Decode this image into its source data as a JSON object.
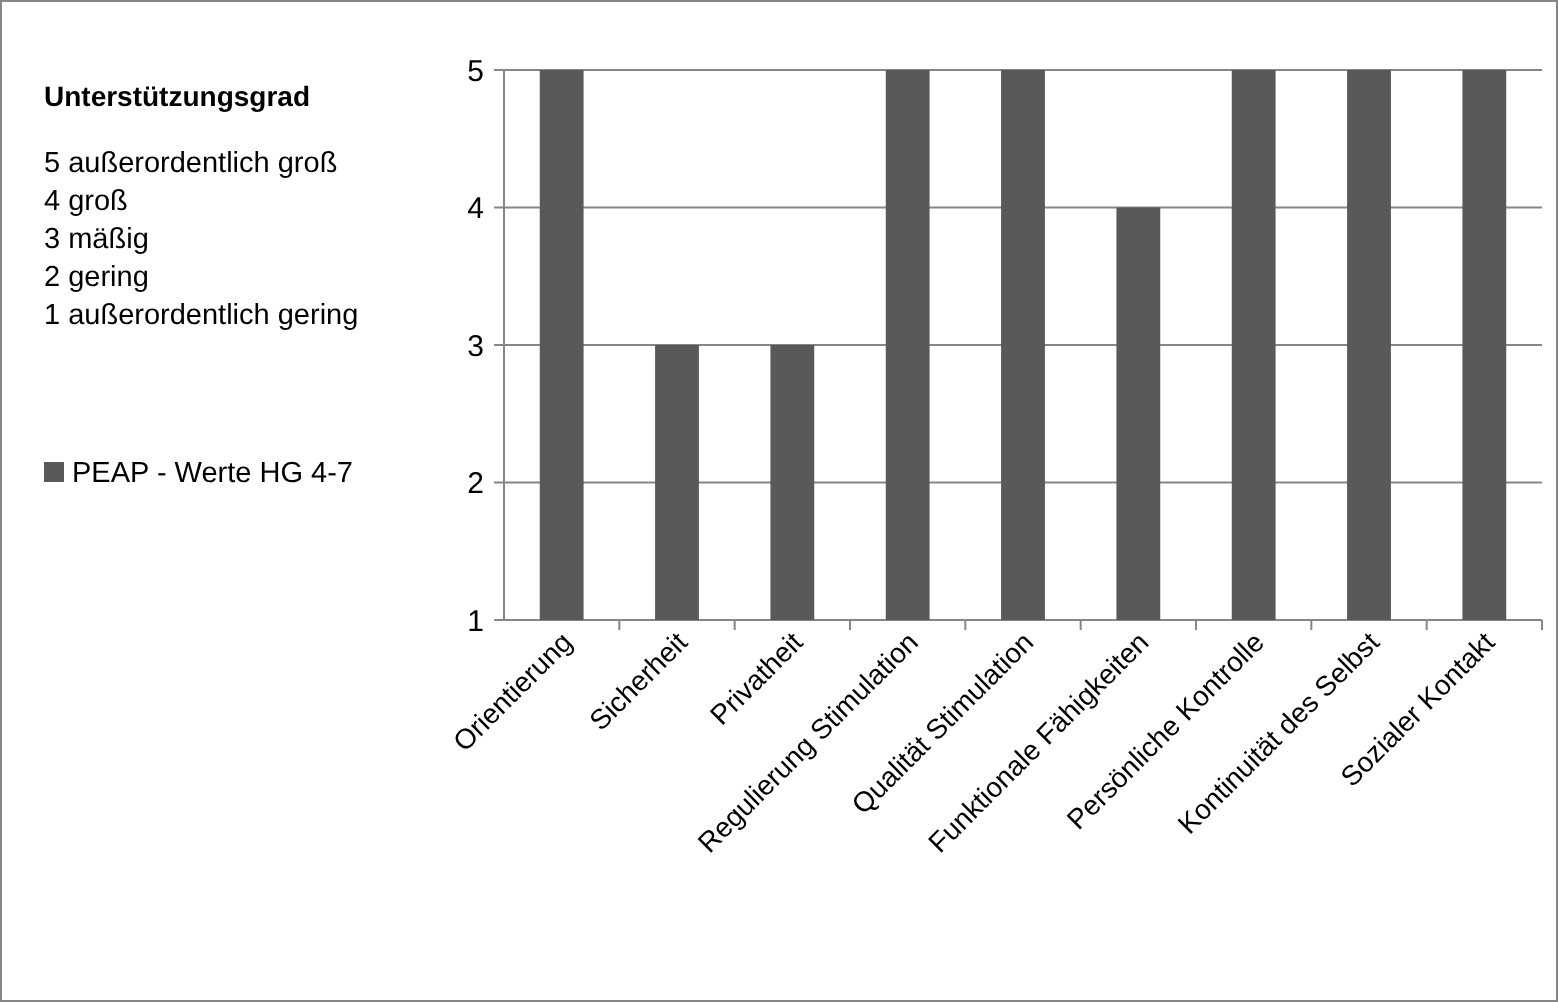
{
  "chart_data": {
    "type": "bar",
    "categories": [
      "Orientierung",
      "Sicherheit",
      "Privatheit",
      "Regulierung Stimulation",
      "Qualität Stimulation",
      "Funktionale Fähigkeiten",
      "Persönliche Kontrolle",
      "Kontinuität des Selbst",
      "Sozialer Kontakt"
    ],
    "series": [
      {
        "name": "PEAP - Werte HG 4-7",
        "color": "#595959",
        "values": [
          5,
          3,
          3,
          5,
          5,
          4,
          5,
          5,
          5
        ]
      }
    ],
    "ylim": [
      1,
      5
    ],
    "yticks": [
      1,
      2,
      3,
      4,
      5
    ],
    "grid": "y",
    "legend": "left",
    "annotations": [
      "Unterstützungsgrad",
      "5 außerordentlich groß",
      "4 groß",
      "3 mäßig",
      "2 gering",
      "1 außerordentlich gering"
    ]
  }
}
